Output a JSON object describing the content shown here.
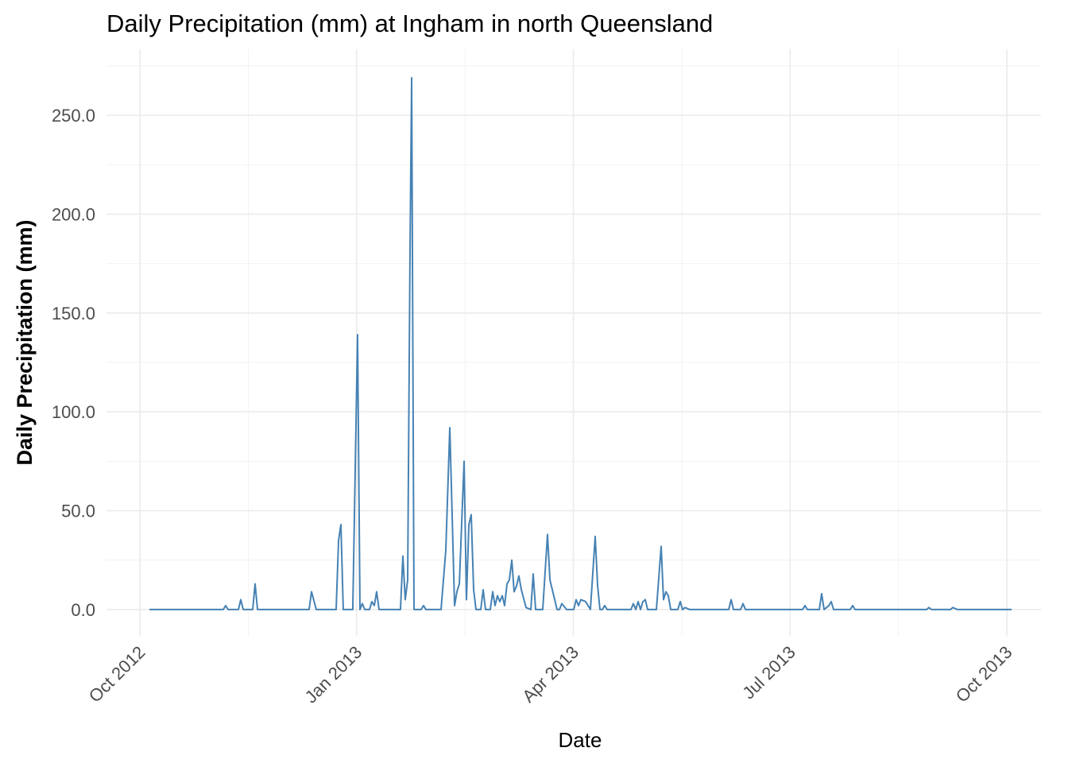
{
  "chart_data": {
    "type": "line",
    "title": "Daily Precipitation (mm) at Ingham in north Queensland",
    "x_label": "Date",
    "y_label": "Daily Precipitation (mm)",
    "x": [
      2012.761,
      2012.8462,
      2012.849,
      2012.8517,
      2012.8637,
      2012.8664,
      2012.8692,
      2012.8802,
      2012.8829,
      2012.8857,
      2012.9452,
      2012.948,
      2012.9535,
      2012.9764,
      2012.9792,
      2012.9819,
      2012.9846,
      2012.9956,
      2013.0011,
      2013.0039,
      2013.0066,
      2013.0094,
      2013.0149,
      2013.0176,
      2013.0204,
      2013.0231,
      2013.0259,
      2013.0506,
      2013.0534,
      2013.0561,
      2013.0589,
      2013.0616,
      2013.0635,
      2013.0662,
      2013.0745,
      2013.0772,
      2013.08,
      2013.0974,
      2013.1029,
      2013.1075,
      2013.113,
      2013.1157,
      2013.1185,
      2013.124,
      2013.1267,
      2013.1295,
      2013.1322,
      2013.135,
      2013.1377,
      2013.1432,
      2013.146,
      2013.1487,
      2013.1542,
      2013.157,
      2013.1597,
      2013.1625,
      2013.1652,
      2013.168,
      2013.1707,
      2013.1735,
      2013.1762,
      2013.179,
      2013.1817,
      2013.1845,
      2013.1872,
      2013.19,
      2013.1955,
      2013.201,
      2013.2037,
      2013.2065,
      2013.2147,
      2013.2202,
      2013.223,
      2013.2285,
      2013.2312,
      2013.234,
      2013.2367,
      2013.2422,
      2013.2505,
      2013.2532,
      2013.256,
      2013.2587,
      2013.2642,
      2013.2697,
      2013.2752,
      2013.278,
      2013.2807,
      2013.2835,
      2013.2862,
      2013.289,
      2013.3165,
      2013.3192,
      2013.322,
      2013.3247,
      2013.3275,
      2013.3302,
      2013.333,
      2013.3357,
      2013.3458,
      2013.3513,
      2013.354,
      2013.3568,
      2013.3595,
      2013.3623,
      2013.3705,
      2013.3733,
      2013.376,
      2013.3788,
      2013.3843,
      2013.4292,
      2013.432,
      2013.4347,
      2013.443,
      2013.4457,
      2013.4485,
      2013.5144,
      2013.5172,
      2013.5199,
      2013.5337,
      2013.5364,
      2013.5392,
      2013.5447,
      2013.5474,
      2013.5502,
      2013.5694,
      2013.5722,
      2013.5749,
      2013.6574,
      2013.6602,
      2013.6629,
      2013.6849,
      2013.6877,
      2013.6932,
      2013.7555
    ],
    "series": [
      {
        "name": "Daily Precipitation",
        "color": "#4682b4",
        "values": [
          0,
          0,
          2,
          0,
          0,
          5,
          0,
          0,
          13,
          0,
          0,
          9,
          0,
          0,
          35,
          43,
          0,
          0,
          139,
          0,
          3,
          0,
          0,
          4,
          2,
          9,
          0,
          0,
          27,
          5,
          15,
          180,
          269,
          0,
          0,
          2,
          0,
          0,
          30,
          92,
          2,
          9,
          13,
          75,
          5,
          43,
          48,
          10,
          0,
          0,
          10,
          0,
          0,
          9,
          2,
          7,
          4,
          7,
          2,
          13,
          15,
          25,
          9,
          12,
          17,
          10,
          1,
          0,
          18,
          0,
          0,
          38,
          15,
          5,
          0,
          0,
          3,
          0,
          0,
          5,
          2,
          5,
          4,
          0,
          37,
          12,
          0,
          0,
          2,
          0,
          0,
          3,
          0,
          4,
          0,
          4,
          5,
          0,
          0,
          32,
          5,
          9,
          7,
          0,
          0,
          4,
          0,
          1,
          0,
          0,
          5,
          0,
          0,
          3,
          0,
          0,
          2,
          0,
          0,
          8,
          0,
          2,
          4,
          0,
          0,
          2,
          0,
          0,
          1,
          0,
          0,
          1,
          0,
          0
        ]
      }
    ],
    "xlim": [
      2012.7115,
      2013.7894
    ],
    "xticks": [
      {
        "value": 2012.75,
        "label": "Oct 2012"
      },
      {
        "value": 2013.0,
        "label": "Jan 2013"
      },
      {
        "value": 2013.25,
        "label": "Apr 2013"
      },
      {
        "value": 2013.5,
        "label": "Jul 2013"
      },
      {
        "value": 2013.75,
        "label": "Oct 2013"
      }
    ],
    "x_minor_ticks": [
      2012.875,
      2013.125,
      2013.375,
      2013.625
    ],
    "ylim": [
      -13.3,
      283.4
    ],
    "yticks": [
      {
        "value": 0,
        "label": "0.0"
      },
      {
        "value": 50,
        "label": "50.0"
      },
      {
        "value": 100,
        "label": "100.0"
      },
      {
        "value": 150,
        "label": "150.0"
      },
      {
        "value": 200,
        "label": "200.0"
      },
      {
        "value": 250,
        "label": "250.0"
      }
    ],
    "y_minor_ticks": [
      25,
      75,
      125,
      175,
      225,
      275
    ],
    "grid": true
  }
}
